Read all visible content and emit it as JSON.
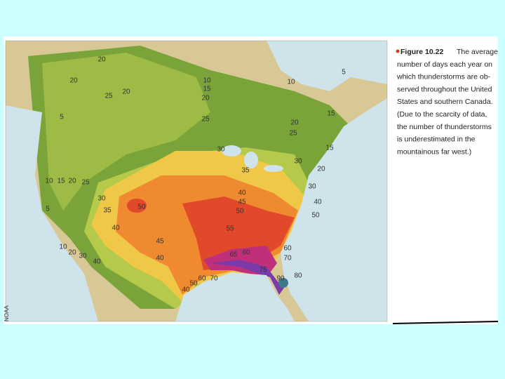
{
  "figure": {
    "label": "Figure 10.22",
    "caption_lines": [
      "The average",
      "number of days each year on",
      "which thunderstorms are ob-",
      "served throughout the United",
      "States and southern Canada.",
      "(Due to the scarcity of data,",
      "the number of thunderstorms",
      "is underestimated in the",
      "mountainous far west.)"
    ],
    "credit": "NOAA"
  },
  "contours": [
    20,
    20,
    25,
    20,
    10,
    15,
    20,
    5,
    10,
    5,
    25,
    15,
    20,
    25,
    30,
    15,
    30,
    20,
    35,
    10,
    15,
    20,
    25,
    30,
    30,
    40,
    45,
    40,
    50,
    35,
    50,
    50,
    40,
    55,
    45,
    10,
    20,
    30,
    60,
    60,
    65,
    70,
    40,
    40,
    75,
    80,
    60,
    70,
    90,
    50,
    40,
    5
  ]
}
